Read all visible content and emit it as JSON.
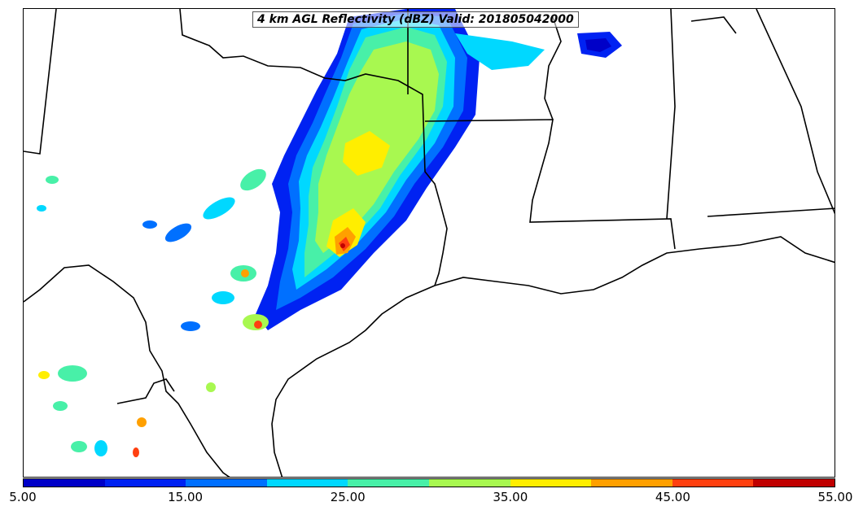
{
  "title": "4 km AGL Reflectivity (dBZ) Valid: 201805042000",
  "colorbar": {
    "colors": [
      "#0000c8",
      "#0022f2",
      "#0070ff",
      "#00d8ff",
      "#48f0a8",
      "#a8f850",
      "#ffee00",
      "#ffa000",
      "#ff4010",
      "#c00000"
    ],
    "tick_labels": [
      "5.00",
      "15.00",
      "25.00",
      "35.00",
      "45.00",
      "55.00"
    ]
  }
}
